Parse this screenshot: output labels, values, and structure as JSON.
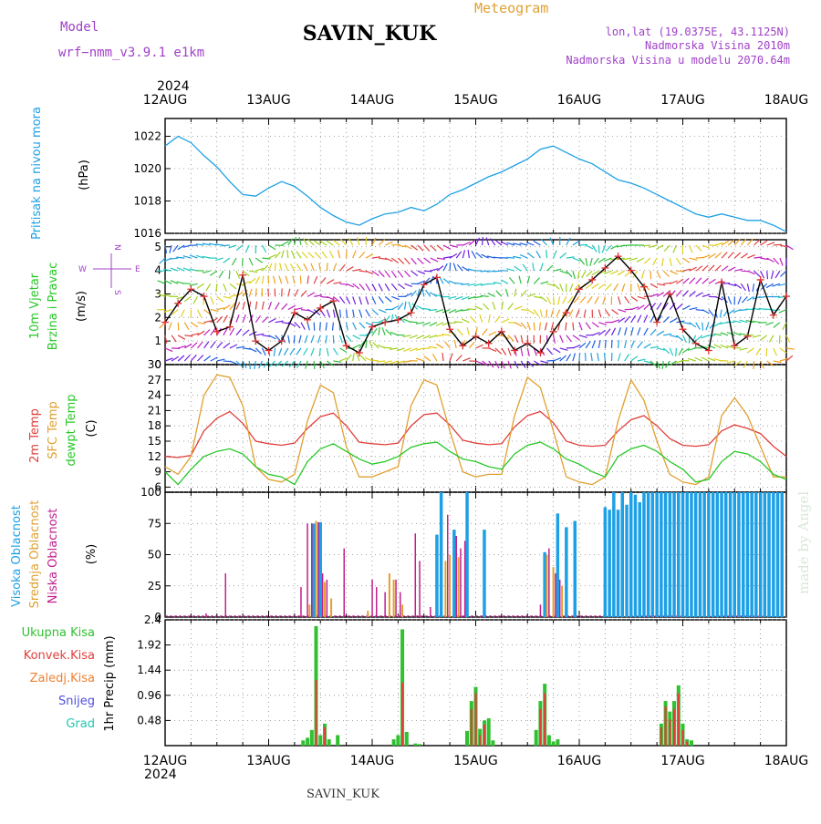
{
  "header": {
    "model_label": "Model",
    "model_name": "wrf−nmm_v3.9.1  e1km",
    "station": "SAVIN_KUK",
    "meteogram": "Meteogram",
    "lonlat": "lon,lat (19.0375E, 43.1125N)",
    "elevation": "Nadmorska Visina 2010m",
    "model_elevation": "Nadmorska Visina u modelu 2070.64m",
    "year_top": "2024",
    "year_bottom": "2024",
    "footer_station": "SAVIN_KUK",
    "watermark": "made by Angel"
  },
  "colors": {
    "pressure": "#1ea0e6",
    "temp2m": "#e0403c",
    "sfc": "#e0a030",
    "dewpt": "#28c828",
    "high_cloud": "#1ea0e6",
    "mid_cloud": "#e0a030",
    "low_cloud": "#c0208c",
    "total_precip": "#30c030",
    "conv_precip": "#e0403c",
    "frozen_precip": "#f08030",
    "snow": "#5050e0",
    "graupel": "#20c8b4",
    "wind_label": "#28c828",
    "cloud_violet": "#a040c8"
  },
  "chart_data": [
    {
      "type": "line",
      "panel": "pressure",
      "ylabel_title": "Pritisak na nivou mora",
      "unit": "(hPa)",
      "ylim": [
        1016,
        1023.1
      ],
      "yticks": [
        1016,
        1018,
        1020,
        1022
      ],
      "x_categories": [
        "12AUG",
        "13AUG",
        "14AUG",
        "15AUG",
        "16AUG",
        "17AUG",
        "18AUG"
      ],
      "grid": true,
      "x_hours": [
        0,
        3,
        6,
        9,
        12,
        15,
        18,
        21,
        24,
        27,
        30,
        33,
        36,
        39,
        42,
        45,
        48,
        51,
        54,
        57,
        60,
        63,
        66,
        69,
        72,
        75,
        78,
        81,
        84,
        87,
        90,
        93,
        96,
        99,
        102,
        105,
        108,
        111,
        114,
        117,
        120,
        123,
        126,
        129,
        132,
        135,
        138,
        141,
        144
      ],
      "values": [
        1021.4,
        1022.0,
        1021.6,
        1020.8,
        1020.1,
        1019.2,
        1018.4,
        1018.3,
        1018.8,
        1019.2,
        1018.9,
        1018.3,
        1017.6,
        1017.1,
        1016.7,
        1016.5,
        1016.9,
        1017.2,
        1017.3,
        1017.6,
        1017.4,
        1017.8,
        1018.4,
        1018.7,
        1019.1,
        1019.5,
        1019.8,
        1020.2,
        1020.6,
        1021.2,
        1021.4,
        1021.0,
        1020.6,
        1020.3,
        1019.8,
        1019.3,
        1019.1,
        1018.8,
        1018.4,
        1018.0,
        1017.6,
        1017.2,
        1017.0,
        1017.2,
        1017.0,
        1016.8,
        1016.8,
        1016.5,
        1016.1
      ]
    },
    {
      "type": "line",
      "panel": "wind",
      "ylabel_title1": "10m Vjetar",
      "ylabel_title2": "Brzina i Pravac",
      "unit": "(m/s)",
      "compass": [
        "N",
        "E",
        "S",
        "W"
      ],
      "ylim": [
        0,
        5.3
      ],
      "yticks": [
        0,
        1,
        2,
        3,
        4,
        5
      ],
      "grid": true,
      "x_hours": [
        0,
        3,
        6,
        9,
        12,
        15,
        18,
        21,
        24,
        27,
        30,
        33,
        36,
        39,
        42,
        45,
        48,
        51,
        54,
        57,
        60,
        63,
        66,
        69,
        72,
        75,
        78,
        81,
        84,
        87,
        90,
        93,
        96,
        99,
        102,
        105,
        108,
        111,
        114,
        117,
        120,
        123,
        126,
        129,
        132,
        135,
        138,
        141,
        144
      ],
      "values": [
        1.8,
        2.6,
        3.2,
        2.9,
        1.4,
        1.6,
        3.8,
        1.0,
        0.6,
        1.0,
        2.2,
        1.9,
        2.4,
        2.7,
        0.8,
        0.5,
        1.6,
        1.8,
        1.9,
        2.2,
        3.4,
        3.7,
        1.5,
        0.8,
        1.2,
        0.9,
        1.4,
        0.6,
        0.9,
        0.5,
        1.4,
        2.2,
        3.2,
        3.6,
        4.1,
        4.6,
        4.0,
        3.3,
        1.8,
        3.0,
        1.5,
        0.9,
        0.6,
        3.5,
        0.8,
        1.2,
        3.6,
        2.1,
        2.9
      ]
    },
    {
      "type": "line",
      "panel": "temperature",
      "series_labels": [
        "2m Temp",
        "SFC Temp",
        "dewpt Temp"
      ],
      "unit": "(C)",
      "ylim": [
        5,
        30
      ],
      "yticks": [
        6,
        9,
        12,
        15,
        18,
        21,
        24,
        27,
        30
      ],
      "grid": true,
      "x_hours": [
        0,
        3,
        6,
        9,
        12,
        15,
        18,
        21,
        24,
        27,
        30,
        33,
        36,
        39,
        42,
        45,
        48,
        51,
        54,
        57,
        60,
        63,
        66,
        69,
        72,
        75,
        78,
        81,
        84,
        87,
        90,
        93,
        96,
        99,
        102,
        105,
        108,
        111,
        114,
        117,
        120,
        123,
        126,
        129,
        132,
        135,
        138,
        141,
        144
      ],
      "series": [
        {
          "values": [
            12.0,
            11.8,
            12.2,
            17.0,
            19.5,
            20.8,
            18.5,
            15.0,
            14.5,
            14.2,
            14.6,
            17.5,
            19.8,
            20.5,
            18.0,
            14.8,
            14.5,
            14.3,
            14.6,
            18.0,
            20.2,
            20.5,
            18.2,
            15.2,
            14.6,
            14.3,
            14.5,
            17.8,
            20.0,
            20.8,
            18.6,
            15.0,
            14.2,
            14.0,
            14.2,
            17.0,
            19.2,
            20.0,
            18.0,
            15.5,
            14.2,
            14.0,
            14.3,
            17.0,
            18.2,
            17.5,
            16.5,
            14.0,
            12.0
          ]
        },
        {
          "values": [
            10.0,
            8.5,
            12.0,
            24.0,
            28.0,
            27.5,
            22.0,
            10.0,
            7.5,
            7.0,
            8.5,
            19.0,
            26.0,
            24.5,
            14.0,
            8.0,
            8.0,
            9.0,
            10.0,
            22.0,
            27.0,
            26.0,
            17.0,
            9.0,
            8.0,
            8.5,
            8.5,
            20.0,
            27.5,
            25.5,
            17.0,
            8.0,
            7.0,
            6.5,
            8.0,
            19.0,
            27.0,
            23.0,
            15.0,
            8.5,
            7.0,
            6.5,
            8.0,
            20.0,
            23.5,
            20.0,
            14.0,
            8.0,
            8.0
          ]
        },
        {
          "values": [
            9.0,
            6.5,
            9.5,
            12.0,
            13.0,
            13.5,
            12.5,
            10.0,
            8.5,
            8.0,
            6.5,
            11.0,
            13.5,
            14.5,
            13.0,
            11.5,
            10.5,
            11.0,
            12.0,
            13.8,
            14.5,
            14.8,
            13.0,
            11.5,
            11.0,
            10.0,
            9.5,
            12.5,
            14.2,
            14.8,
            13.5,
            11.5,
            10.5,
            9.0,
            8.0,
            12.0,
            13.5,
            14.2,
            13.0,
            11.0,
            9.5,
            7.0,
            7.5,
            11.0,
            13.0,
            12.5,
            11.0,
            8.5,
            7.5
          ]
        }
      ]
    },
    {
      "type": "bar",
      "panel": "clouds",
      "series_labels": [
        "Visoka Oblacnost",
        "Srednja Oblacnost",
        "Niska Oblacnost"
      ],
      "unit": "(%)",
      "ylim": [
        0,
        100
      ],
      "yticks": [
        0,
        25,
        50,
        75,
        100
      ],
      "grid": true,
      "series": [
        {
          "name": "Visoka",
          "points": [
            [
              34.5,
              75
            ],
            [
              36,
              76
            ],
            [
              63,
              66
            ],
            [
              64,
              100
            ],
            [
              67,
              70
            ],
            [
              70,
              100
            ],
            [
              74,
              70
            ],
            [
              88,
              52
            ],
            [
              91,
              83
            ],
            [
              93,
              72
            ],
            [
              95,
              77
            ],
            [
              102,
              88
            ],
            [
              103,
              86
            ],
            [
              104,
              100
            ],
            [
              105,
              86
            ],
            [
              106,
              100
            ],
            [
              107,
              90
            ],
            [
              108,
              100
            ],
            [
              109,
              98
            ],
            [
              110,
              92
            ],
            [
              111,
              100
            ],
            [
              112,
              100
            ],
            [
              113,
              100
            ],
            [
              114,
              100
            ],
            [
              115,
              100
            ],
            [
              116,
              100
            ],
            [
              117,
              100
            ],
            [
              118,
              100
            ],
            [
              119,
              100
            ],
            [
              120,
              100
            ],
            [
              121,
              100
            ],
            [
              122,
              100
            ],
            [
              123,
              100
            ],
            [
              124,
              100
            ],
            [
              125,
              100
            ],
            [
              126,
              100
            ],
            [
              127,
              100
            ],
            [
              128,
              100
            ],
            [
              129,
              100
            ],
            [
              130,
              100
            ],
            [
              131,
              100
            ],
            [
              132,
              100
            ],
            [
              133,
              100
            ],
            [
              134,
              100
            ],
            [
              135,
              100
            ],
            [
              136,
              100
            ],
            [
              137,
              100
            ],
            [
              138,
              100
            ],
            [
              139,
              100
            ],
            [
              140,
              100
            ],
            [
              141,
              100
            ],
            [
              142,
              100
            ],
            [
              143,
              100
            ]
          ]
        },
        {
          "name": "Srednja",
          "points": [
            [
              33.5,
              10
            ],
            [
              35,
              77
            ],
            [
              37,
              28
            ],
            [
              38.5,
              15
            ],
            [
              47,
              5
            ],
            [
              52,
              35
            ],
            [
              53,
              30
            ],
            [
              55,
              10
            ],
            [
              65,
              45
            ],
            [
              66,
              50
            ],
            [
              68,
              48
            ],
            [
              88.5,
              50
            ],
            [
              90,
              40
            ],
            [
              92,
              25
            ]
          ]
        },
        {
          "name": "Niska",
          "points": [
            [
              9.5,
              3
            ],
            [
              14,
              35
            ],
            [
              31.5,
              24
            ],
            [
              33,
              75
            ],
            [
              34,
              75
            ],
            [
              35.5,
              76
            ],
            [
              36.5,
              35
            ],
            [
              37.5,
              30
            ],
            [
              41.5,
              55
            ],
            [
              48,
              30
            ],
            [
              49,
              24
            ],
            [
              51,
              20
            ],
            [
              53.5,
              30
            ],
            [
              54.5,
              20
            ],
            [
              58,
              67
            ],
            [
              59,
              45
            ],
            [
              61.5,
              8
            ],
            [
              65.5,
              82
            ],
            [
              67.5,
              65
            ],
            [
              68.5,
              55
            ],
            [
              69.5,
              61
            ],
            [
              87,
              10
            ],
            [
              89,
              55
            ],
            [
              90.5,
              35
            ],
            [
              91.5,
              30
            ]
          ]
        }
      ]
    },
    {
      "type": "bar",
      "panel": "precip",
      "series_labels": [
        "Ukupna Kisa",
        "Konvek.Kisa",
        "Zaledj.Kisa",
        "Snijeg",
        "Grad"
      ],
      "unit": "1hr Precip (mm)",
      "ylim": [
        0,
        2.4
      ],
      "yticks": [
        0.48,
        0.96,
        1.44,
        1.92,
        2.4
      ],
      "grid": true,
      "x_labels_bottom": [
        "12AUG",
        "13AUG",
        "14AUG",
        "15AUG",
        "16AUG",
        "17AUG",
        "18AUG"
      ],
      "series": [
        {
          "name": "Ukupna",
          "points": [
            [
              32,
              0.1
            ],
            [
              33,
              0.15
            ],
            [
              34,
              0.3
            ],
            [
              35,
              2.28
            ],
            [
              36,
              0.2
            ],
            [
              37,
              0.42
            ],
            [
              38,
              0.12
            ],
            [
              40,
              0.2
            ],
            [
              53,
              0.12
            ],
            [
              54,
              0.2
            ],
            [
              55,
              2.22
            ],
            [
              56,
              0.26
            ],
            [
              58,
              0.04
            ],
            [
              59,
              0.03
            ],
            [
              70,
              0.28
            ],
            [
              71,
              0.85
            ],
            [
              72,
              1.12
            ],
            [
              73,
              0.32
            ],
            [
              74,
              0.48
            ],
            [
              75,
              0.52
            ],
            [
              76,
              0.1
            ],
            [
              86,
              0.3
            ],
            [
              87,
              0.85
            ],
            [
              88,
              1.18
            ],
            [
              89,
              0.2
            ],
            [
              90,
              0.08
            ],
            [
              91,
              0.12
            ],
            [
              115,
              0.42
            ],
            [
              116,
              0.85
            ],
            [
              117,
              0.65
            ],
            [
              118,
              0.85
            ],
            [
              119,
              1.15
            ],
            [
              120,
              0.42
            ],
            [
              121,
              0.12
            ],
            [
              122,
              0.1
            ]
          ]
        },
        {
          "name": "Konvek",
          "points": [
            [
              35,
              1.25
            ],
            [
              37,
              0.35
            ],
            [
              55,
              1.2
            ],
            [
              71,
              0.7
            ],
            [
              72,
              1.0
            ],
            [
              73,
              0.2
            ],
            [
              74,
              0.4
            ],
            [
              87,
              0.7
            ],
            [
              88,
              1.0
            ],
            [
              115,
              0.35
            ],
            [
              116,
              0.75
            ],
            [
              117,
              0.5
            ],
            [
              118,
              0.7
            ],
            [
              119,
              1.0
            ],
            [
              120,
              0.3
            ],
            [
              121,
              0.08
            ]
          ]
        }
      ]
    }
  ]
}
